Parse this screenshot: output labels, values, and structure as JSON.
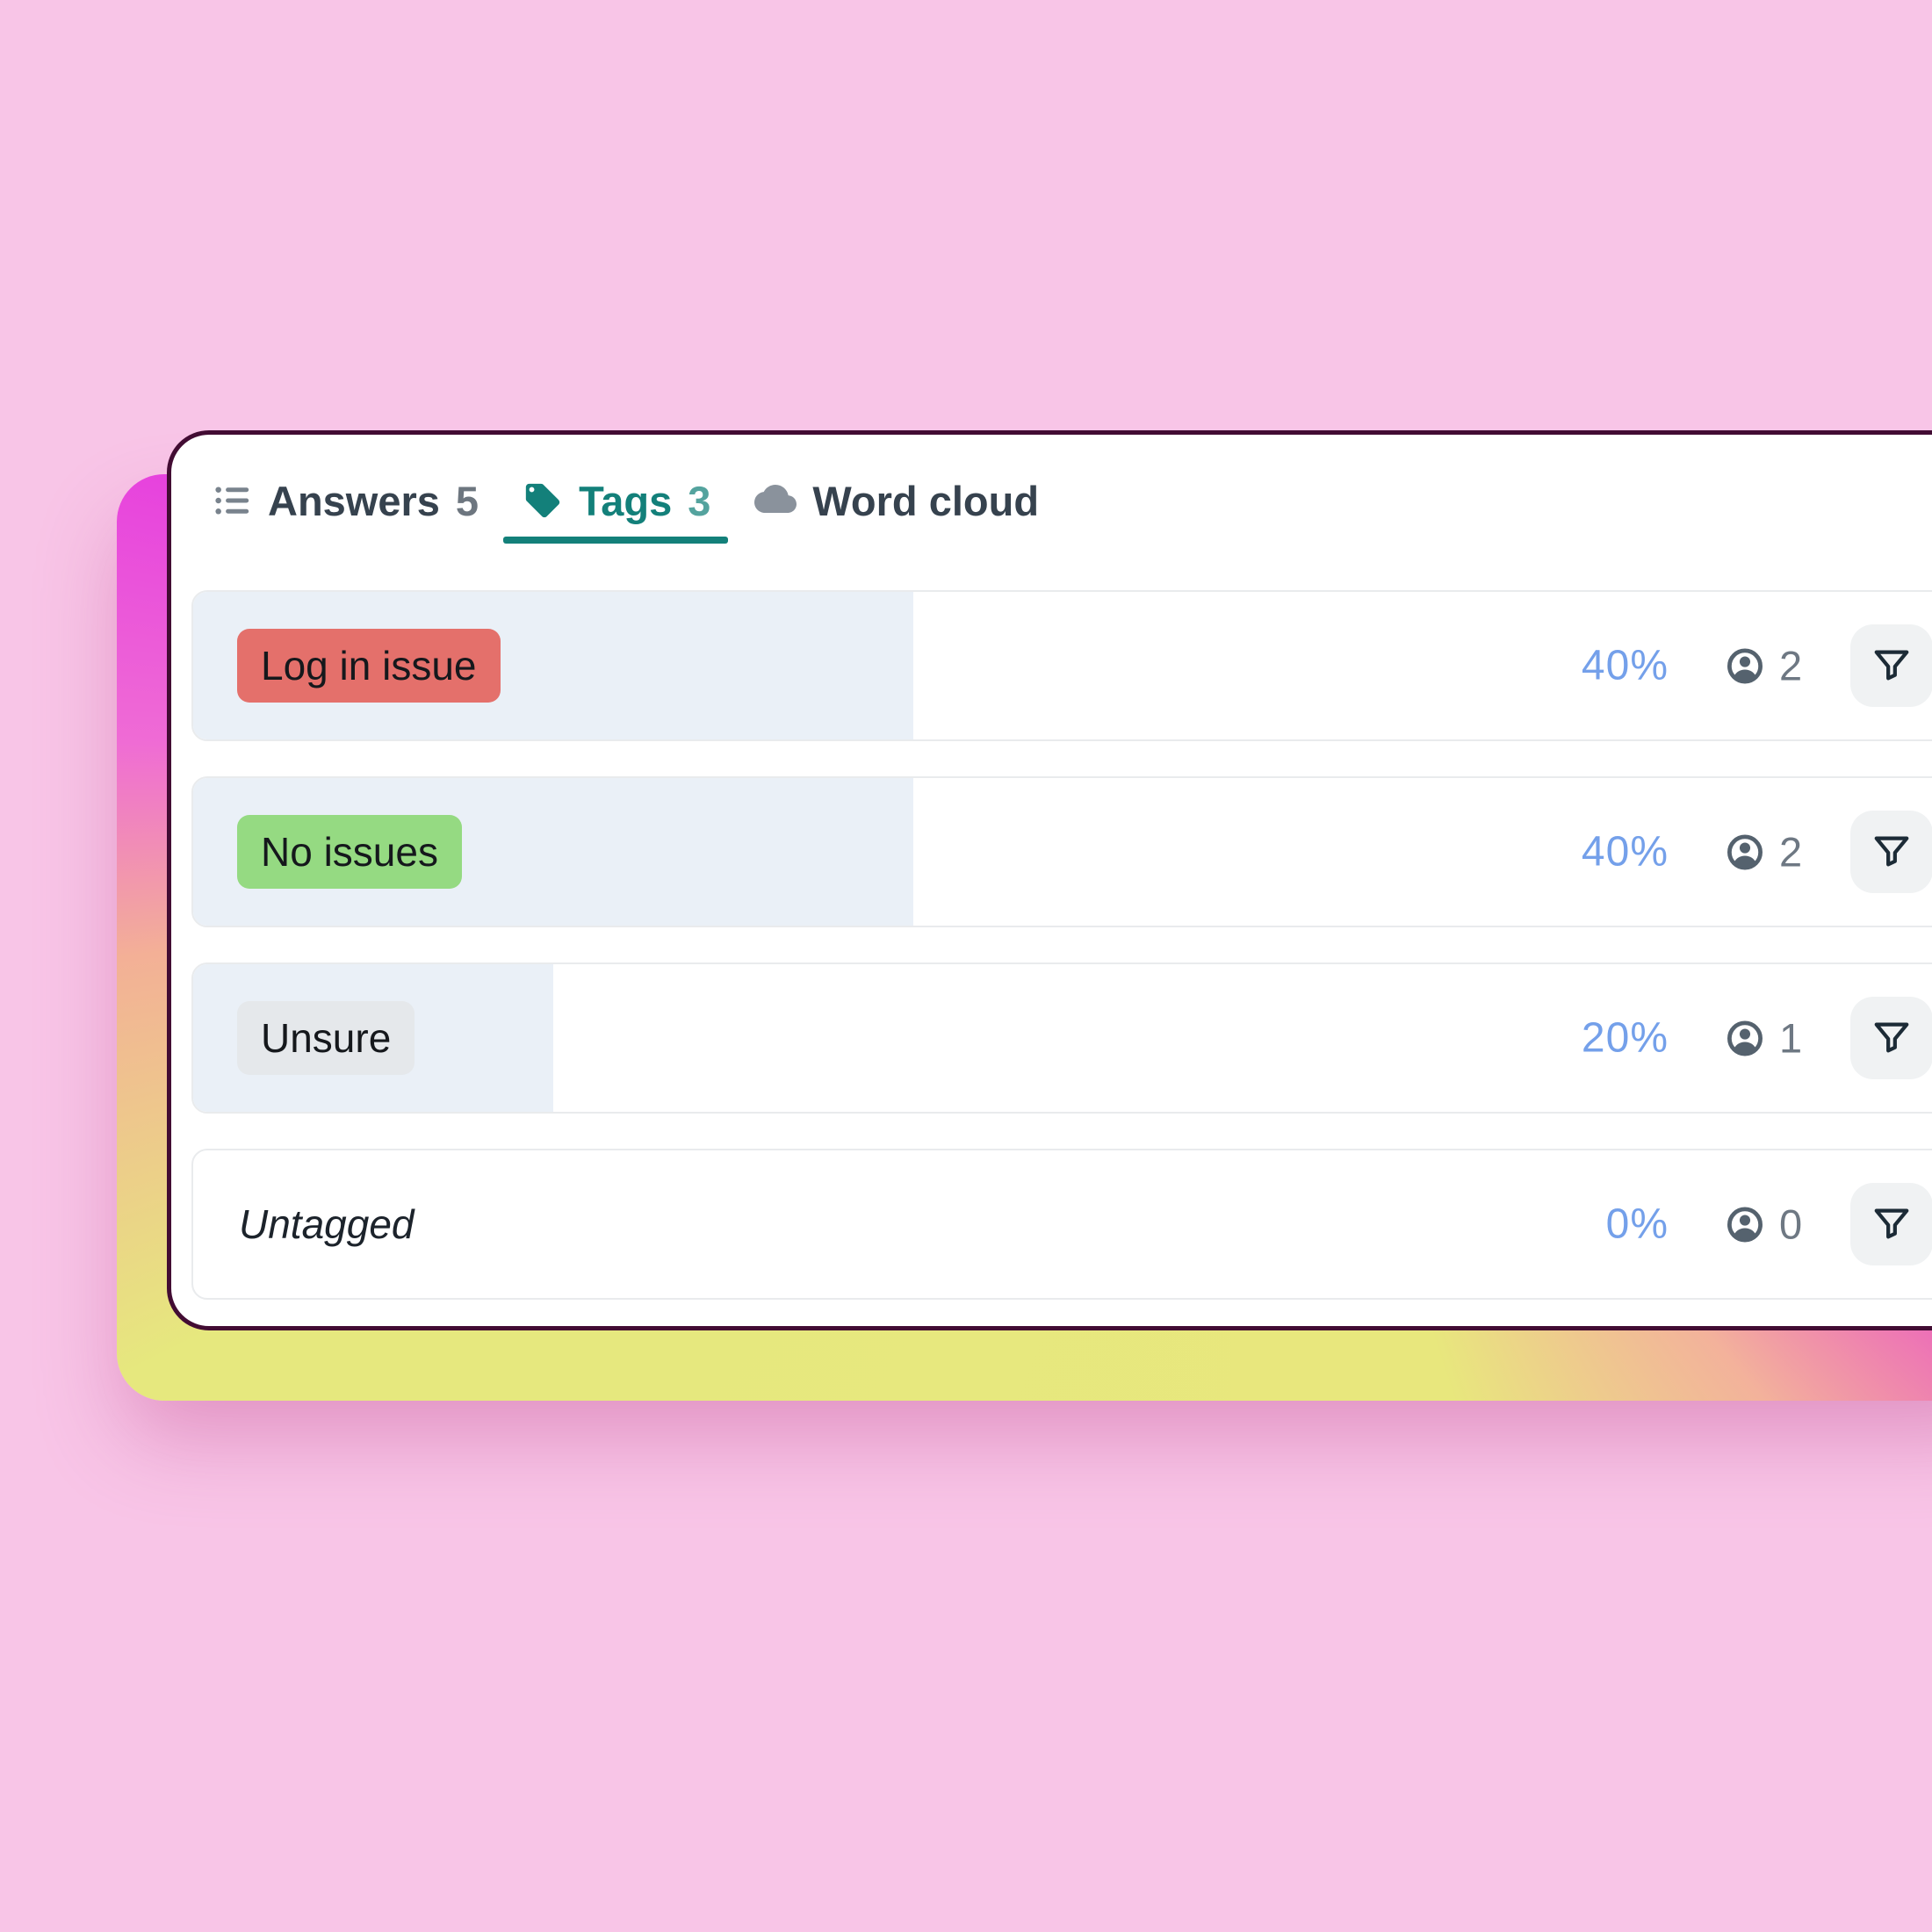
{
  "tabs": {
    "answers": {
      "label": "Answers",
      "count": "5"
    },
    "tags": {
      "label": "Tags",
      "count": "3"
    },
    "wordcloud": {
      "label": "Word cloud"
    }
  },
  "rows": [
    {
      "tag": "Log in issue",
      "badge_bg": "#E4706B",
      "pct": "40%",
      "pct_value": 40,
      "count": "2"
    },
    {
      "tag": "No issues",
      "badge_bg": "#95DA82",
      "pct": "40%",
      "pct_value": 40,
      "count": "2"
    },
    {
      "tag": "Unsure",
      "badge_bg": "#E5E8EB",
      "pct": "20%",
      "pct_value": 20,
      "count": "1"
    },
    {
      "tag": "Untagged",
      "badge_bg": null,
      "pct": "0%",
      "pct_value": 0,
      "count": "0"
    }
  ],
  "colors": {
    "background_pink": "#F8C5E7",
    "glow_magenta": "#E331E1",
    "glow_yellow": "#E7E77E",
    "card_border": "#420C33",
    "accent_teal": "#13807A",
    "tab_text": "#36424E",
    "bar_fill": "#EAF0F7",
    "percent_blue": "#74A0EA",
    "badge_red": "#E4706B",
    "badge_green": "#95DA82",
    "badge_gray": "#E5E8EB"
  }
}
